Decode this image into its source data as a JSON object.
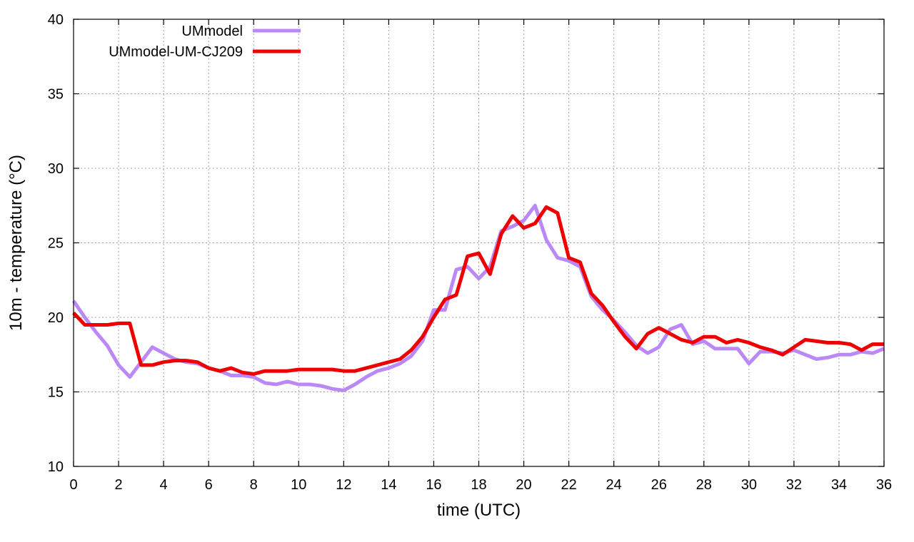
{
  "chart_data": {
    "type": "line",
    "title": "",
    "xlabel": "time (UTC)",
    "ylabel": "10m - temperature (°C)",
    "xlim": [
      0,
      36
    ],
    "ylim": [
      10,
      40
    ],
    "xticks": [
      0,
      2,
      4,
      6,
      8,
      10,
      12,
      14,
      16,
      18,
      20,
      22,
      24,
      26,
      28,
      30,
      32,
      34,
      36
    ],
    "yticks": [
      10,
      15,
      20,
      25,
      30,
      35,
      40
    ],
    "grid": true,
    "legend_position": "top-left",
    "x": [
      0,
      0.5,
      1,
      1.5,
      2,
      2.5,
      3,
      3.5,
      4,
      4.5,
      5,
      5.5,
      6,
      6.5,
      7,
      7.5,
      8,
      8.5,
      9,
      9.5,
      10,
      10.5,
      11,
      11.5,
      12,
      12.5,
      13,
      13.5,
      14,
      14.5,
      15,
      15.5,
      16,
      16.5,
      17,
      17.5,
      18,
      18.5,
      19,
      19.5,
      20,
      20.5,
      21,
      21.5,
      22,
      22.5,
      23,
      23.5,
      24,
      24.5,
      25,
      25.5,
      26,
      26.5,
      27,
      27.5,
      28,
      28.5,
      29,
      29.5,
      30,
      30.5,
      31,
      31.5,
      32,
      32.5,
      33,
      33.5,
      34,
      34.5,
      35,
      35.5,
      36
    ],
    "series": [
      {
        "name": "UMmodel",
        "color": "#bb88f8",
        "values": [
          21.1,
          20.0,
          19.0,
          18.1,
          16.8,
          16.0,
          17.0,
          18.0,
          17.6,
          17.2,
          17.0,
          16.9,
          16.6,
          16.4,
          16.1,
          16.1,
          16.0,
          15.6,
          15.5,
          15.7,
          15.5,
          15.5,
          15.4,
          15.2,
          15.1,
          15.5,
          16.0,
          16.4,
          16.6,
          16.9,
          17.4,
          18.4,
          20.5,
          20.5,
          23.2,
          23.4,
          22.6,
          23.4,
          25.8,
          26.1,
          26.5,
          27.5,
          25.2,
          24.0,
          23.8,
          23.4,
          21.4,
          20.5,
          19.8,
          19.0,
          18.1,
          17.6,
          18.0,
          19.2,
          19.5,
          18.2,
          18.4,
          17.9,
          17.9,
          17.9,
          16.9,
          17.7,
          17.7,
          17.6,
          17.8,
          17.5,
          17.2,
          17.3,
          17.5,
          17.5,
          17.7,
          17.6,
          17.9
        ]
      },
      {
        "name": "UMmodel-UM-CJ209",
        "color": "#ee0000",
        "values": [
          20.3,
          19.5,
          19.5,
          19.5,
          19.6,
          19.6,
          16.8,
          16.8,
          17.0,
          17.1,
          17.1,
          17.0,
          16.6,
          16.4,
          16.6,
          16.3,
          16.2,
          16.4,
          16.4,
          16.4,
          16.5,
          16.5,
          16.5,
          16.5,
          16.4,
          16.4,
          16.6,
          16.8,
          17.0,
          17.2,
          17.8,
          18.7,
          20.0,
          21.2,
          21.5,
          24.1,
          24.3,
          22.9,
          25.6,
          26.8,
          26.0,
          26.3,
          27.4,
          27.0,
          24.0,
          23.7,
          21.6,
          20.8,
          19.7,
          18.7,
          17.9,
          18.9,
          19.3,
          18.9,
          18.5,
          18.3,
          18.7,
          18.7,
          18.3,
          18.5,
          18.3,
          18.0,
          17.8,
          17.5,
          18.0,
          18.5,
          18.4,
          18.3,
          18.3,
          18.2,
          17.8,
          18.2,
          18.2
        ]
      }
    ]
  }
}
